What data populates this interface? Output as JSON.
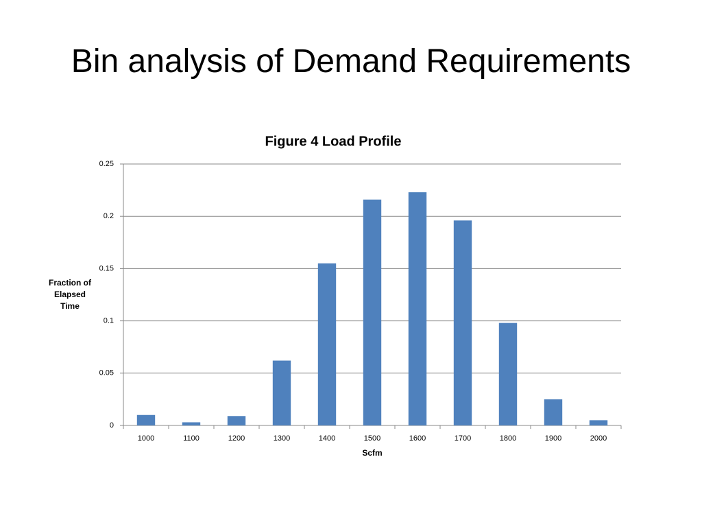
{
  "title": "Bin analysis of Demand Requirements",
  "chart_data": {
    "type": "bar",
    "title": "Figure 4 Load Profile",
    "x_label": "Scfm",
    "y_label": "Fraction of Elapsed Time",
    "categories": [
      "1000",
      "1100",
      "1200",
      "1300",
      "1400",
      "1500",
      "1600",
      "1700",
      "1800",
      "1900",
      "2000"
    ],
    "values": [
      0.01,
      0.003,
      0.009,
      0.062,
      0.155,
      0.216,
      0.223,
      0.196,
      0.098,
      0.025,
      0.005
    ],
    "color": "#4f81bd",
    "ylim": [
      0,
      0.25
    ],
    "yticks": [
      0,
      0.05,
      0.1,
      0.15,
      0.2,
      0.25
    ],
    "grid": true
  }
}
